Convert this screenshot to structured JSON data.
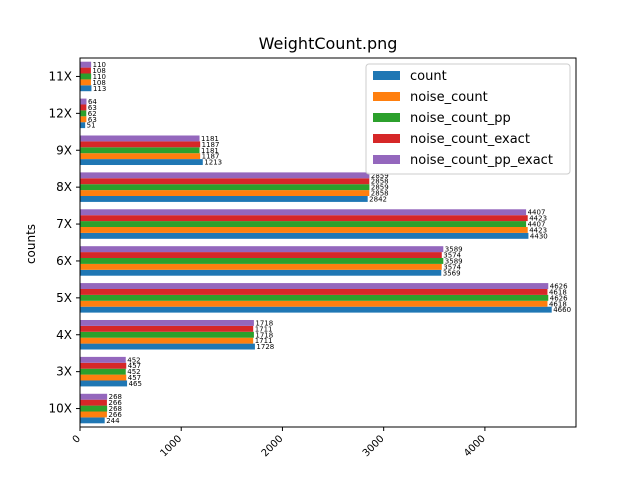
{
  "chart_data": {
    "type": "bar",
    "orientation": "horizontal",
    "title": "WeightCount.png",
    "xlabel": "",
    "ylabel": "counts",
    "xlim": [
      0,
      4900
    ],
    "xticks": [
      0,
      1000,
      2000,
      3000,
      4000
    ],
    "categories": [
      "10X",
      "3X",
      "4X",
      "5X",
      "6X",
      "7X",
      "8X",
      "9X",
      "12X",
      "11X"
    ],
    "series": [
      {
        "name": "count",
        "color": "#1f77b4",
        "values": [
          244,
          465,
          1728,
          4660,
          3569,
          4430,
          2842,
          1213,
          51,
          113
        ]
      },
      {
        "name": "noise_count",
        "color": "#ff7f0e",
        "values": [
          266,
          457,
          1711,
          4618,
          3574,
          4423,
          2858,
          1187,
          63,
          108
        ]
      },
      {
        "name": "noise_count_pp",
        "color": "#2ca02c",
        "values": [
          268,
          452,
          1718,
          4626,
          3589,
          4407,
          2859,
          1181,
          62,
          110
        ]
      },
      {
        "name": "noise_count_exact",
        "color": "#d62728",
        "values": [
          266,
          457,
          1711,
          4618,
          3574,
          4423,
          2858,
          1187,
          63,
          108
        ]
      },
      {
        "name": "noise_count_pp_exact",
        "color": "#9467bd",
        "values": [
          268,
          452,
          1718,
          4626,
          3589,
          4407,
          2859,
          1181,
          64,
          110
        ]
      }
    ],
    "legend_position": "upper right",
    "grid": false
  }
}
